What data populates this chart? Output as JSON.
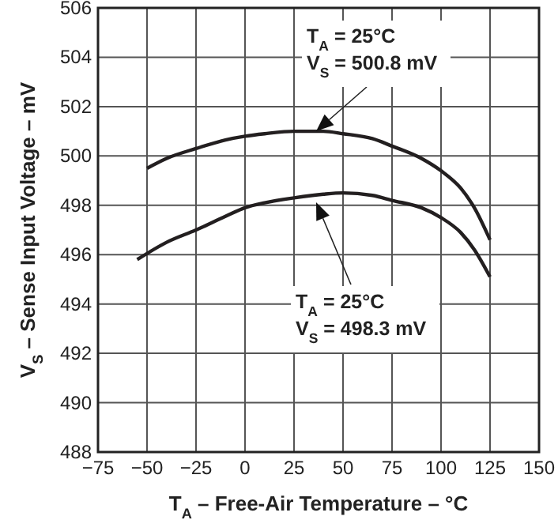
{
  "chart_data": {
    "type": "line",
    "xlabel": "T$_{A}$ – Free-Air Temperature – °C",
    "ylabel": "V$_{S}$ – Sense Input Voltage – mV",
    "xlim": [
      -75,
      150
    ],
    "xticks": [
      -75,
      -50,
      -25,
      0,
      25,
      50,
      75,
      100,
      125,
      150
    ],
    "ylim": [
      488,
      506
    ],
    "yticks": [
      488,
      490,
      492,
      494,
      496,
      498,
      500,
      502,
      504,
      506
    ],
    "grid": true,
    "line_style": "solid",
    "series": [
      {
        "color": "#231f20",
        "x": [
          -50,
          -40,
          -25,
          -10,
          0,
          10,
          25,
          40,
          50,
          65,
          75,
          90,
          100,
          110,
          117,
          125
        ],
        "values": [
          499.5,
          499.9,
          500.3,
          500.65,
          500.8,
          500.9,
          501.0,
          501.0,
          500.9,
          500.7,
          500.4,
          499.9,
          499.4,
          498.7,
          497.9,
          496.6
        ]
      },
      {
        "color": "#231f20",
        "x": [
          -55,
          -40,
          -25,
          -10,
          0,
          10,
          25,
          40,
          50,
          65,
          75,
          90,
          100,
          110,
          117,
          125
        ],
        "values": [
          495.8,
          496.5,
          497.0,
          497.55,
          497.9,
          498.1,
          498.3,
          498.45,
          498.5,
          498.4,
          498.2,
          497.9,
          497.5,
          496.9,
          496.2,
          495.1
        ]
      }
    ],
    "annotations": [
      "T$_{A}$ = 25°C\nV$_{S}$ = 500.8 mV",
      "T$_{A}$ = 25°C\nV$_{S}$ = 498.3 mV"
    ]
  }
}
